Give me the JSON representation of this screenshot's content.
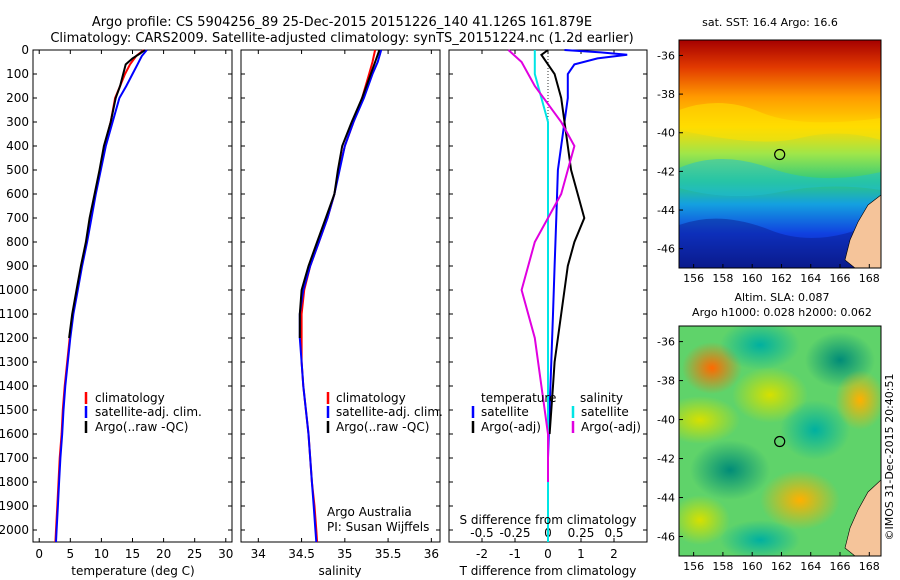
{
  "header": {
    "line1": "Argo profile: CS 5904256_89 25-Dec-2015 20151226_140 41.126S 161.879E",
    "line2": "Climatology: CARS2009. Satellite-adjusted climatology: synTS_20151224.nc (1.2d earlier)"
  },
  "colors": {
    "climatology": "#ff0000",
    "satellite": "#0000ff",
    "argo": "#000000",
    "s_satellite": "#00e5e5",
    "s_argo": "#e000e0"
  },
  "chart_data": [
    {
      "type": "line",
      "panel": "temperature",
      "xlabel": "temperature (deg C)",
      "ylabel": "",
      "xlim": [
        -1,
        31
      ],
      "ylim": [
        2050,
        0
      ],
      "xticks": [
        "0",
        "5",
        "10",
        "15",
        "20",
        "25",
        "30"
      ],
      "yticks": [
        "0",
        "100",
        "200",
        "300",
        "400",
        "500",
        "600",
        "700",
        "800",
        "900",
        "1000",
        "1100",
        "1200",
        "1300",
        "1400",
        "1500",
        "1600",
        "1700",
        "1800",
        "1900",
        "2000"
      ],
      "legend": [
        "climatology",
        "satellite-adj. clim.",
        "Argo(..raw -QC)"
      ],
      "legend_position": "lower-left",
      "series": [
        {
          "name": "climatology",
          "color": "#ff0000",
          "points": [
            [
              16.8,
              0
            ],
            [
              15.6,
              25
            ],
            [
              14.6,
              60
            ],
            [
              13.8,
              100
            ],
            [
              13.0,
              150
            ],
            [
              12.2,
              200
            ],
            [
              11.5,
              300
            ],
            [
              10.5,
              400
            ],
            [
              9.8,
              500
            ],
            [
              9.0,
              600
            ],
            [
              8.3,
              700
            ],
            [
              7.6,
              800
            ],
            [
              6.8,
              900
            ],
            [
              6.1,
              1000
            ],
            [
              5.4,
              1100
            ],
            [
              4.9,
              1200
            ],
            [
              4.5,
              1300
            ],
            [
              4.1,
              1400
            ],
            [
              3.8,
              1500
            ],
            [
              3.6,
              1600
            ],
            [
              3.3,
              1700
            ],
            [
              3.1,
              1800
            ],
            [
              2.9,
              1900
            ],
            [
              2.7,
              2000
            ],
            [
              2.6,
              2050
            ]
          ]
        },
        {
          "name": "satellite-adj. clim.",
          "color": "#0000ff",
          "points": [
            [
              17.3,
              0
            ],
            [
              16.5,
              25
            ],
            [
              15.8,
              60
            ],
            [
              15.0,
              100
            ],
            [
              14.0,
              150
            ],
            [
              12.9,
              200
            ],
            [
              11.8,
              300
            ],
            [
              10.7,
              400
            ],
            [
              9.9,
              500
            ],
            [
              9.1,
              600
            ],
            [
              8.4,
              700
            ],
            [
              7.7,
              800
            ],
            [
              6.9,
              900
            ],
            [
              6.2,
              1000
            ],
            [
              5.5,
              1100
            ],
            [
              5.0,
              1200
            ],
            [
              4.6,
              1300
            ],
            [
              4.2,
              1400
            ],
            [
              3.9,
              1500
            ],
            [
              3.7,
              1600
            ],
            [
              3.4,
              1700
            ],
            [
              3.2,
              1800
            ],
            [
              3.0,
              1900
            ],
            [
              2.8,
              2000
            ],
            [
              2.7,
              2050
            ]
          ]
        },
        {
          "name": "Argo(..raw -QC)",
          "color": "#000000",
          "points": [
            [
              17.0,
              0
            ],
            [
              16.2,
              15
            ],
            [
              15.0,
              35
            ],
            [
              13.9,
              60
            ],
            [
              13.5,
              100
            ],
            [
              13.0,
              150
            ],
            [
              12.3,
              200
            ],
            [
              11.5,
              300
            ],
            [
              10.4,
              400
            ],
            [
              9.7,
              500
            ],
            [
              8.9,
              600
            ],
            [
              8.1,
              700
            ],
            [
              7.5,
              800
            ],
            [
              6.7,
              900
            ],
            [
              6.0,
              1000
            ],
            [
              5.3,
              1100
            ],
            [
              4.8,
              1200
            ]
          ]
        }
      ]
    },
    {
      "type": "line",
      "panel": "salinity",
      "xlabel": "salinity",
      "xlim": [
        33.8,
        36.1
      ],
      "ylim": [
        2050,
        0
      ],
      "xticks": [
        "34",
        "34.5",
        "35",
        "35.5",
        "36"
      ],
      "legend": [
        "climatology",
        "satellite-adj. clim.",
        "Argo(..raw -QC)"
      ],
      "legend_position": "lower-right",
      "annotation": [
        "Argo Australia",
        "PI: Susan Wijffels"
      ],
      "series": [
        {
          "name": "climatology",
          "color": "#ff0000",
          "points": [
            [
              35.35,
              0
            ],
            [
              35.32,
              50
            ],
            [
              35.28,
              100
            ],
            [
              35.2,
              200
            ],
            [
              35.1,
              300
            ],
            [
              35.0,
              400
            ],
            [
              34.93,
              500
            ],
            [
              34.88,
              600
            ],
            [
              34.8,
              700
            ],
            [
              34.7,
              800
            ],
            [
              34.6,
              900
            ],
            [
              34.53,
              1000
            ],
            [
              34.5,
              1100
            ],
            [
              34.5,
              1200
            ],
            [
              34.5,
              1300
            ],
            [
              34.52,
              1400
            ],
            [
              34.55,
              1500
            ],
            [
              34.58,
              1600
            ],
            [
              34.6,
              1700
            ],
            [
              34.62,
              1800
            ],
            [
              34.65,
              1900
            ],
            [
              34.67,
              2000
            ],
            [
              34.68,
              2050
            ]
          ]
        },
        {
          "name": "satellite-adj. clim.",
          "color": "#0000ff",
          "points": [
            [
              35.42,
              0
            ],
            [
              35.38,
              50
            ],
            [
              35.32,
              100
            ],
            [
              35.22,
              200
            ],
            [
              35.1,
              300
            ],
            [
              35.0,
              400
            ],
            [
              34.94,
              500
            ],
            [
              34.88,
              600
            ],
            [
              34.8,
              700
            ],
            [
              34.7,
              800
            ],
            [
              34.6,
              900
            ],
            [
              34.52,
              1000
            ],
            [
              34.48,
              1100
            ],
            [
              34.48,
              1200
            ],
            [
              34.5,
              1300
            ],
            [
              34.52,
              1400
            ],
            [
              34.55,
              1500
            ],
            [
              34.58,
              1600
            ],
            [
              34.6,
              1700
            ],
            [
              34.62,
              1800
            ],
            [
              34.64,
              1900
            ],
            [
              34.66,
              2000
            ],
            [
              34.67,
              2050
            ]
          ]
        },
        {
          "name": "Argo(..raw -QC)",
          "color": "#000000",
          "points": [
            [
              35.4,
              0
            ],
            [
              35.36,
              40
            ],
            [
              35.3,
              100
            ],
            [
              35.2,
              200
            ],
            [
              35.08,
              300
            ],
            [
              34.97,
              400
            ],
            [
              34.92,
              500
            ],
            [
              34.88,
              600
            ],
            [
              34.78,
              700
            ],
            [
              34.68,
              800
            ],
            [
              34.58,
              900
            ],
            [
              34.5,
              1000
            ],
            [
              34.48,
              1100
            ],
            [
              34.48,
              1200
            ]
          ]
        }
      ]
    },
    {
      "type": "line",
      "panel": "differences",
      "xlabel": "T difference from climatology",
      "xlabel_top": "S difference from climatology",
      "xlim": [
        -3,
        3
      ],
      "ylim": [
        2050,
        0
      ],
      "xticks": [
        "-2",
        "-1",
        "0",
        "1",
        "2"
      ],
      "xticks_s": [
        "-0.5",
        "-0.25",
        "0",
        "0.25",
        "0.5"
      ],
      "legend_headers": [
        "temperature",
        "salinity"
      ],
      "legend": [
        "satellite",
        "Argo(-adj)",
        "satellite",
        "Argo(-adj)"
      ],
      "legend_position": "lower-center",
      "series": [
        {
          "name": "satellite",
          "group": "temperature",
          "color": "#0000ff",
          "points": [
            [
              0.5,
              0
            ],
            [
              1.6,
              10
            ],
            [
              2.4,
              20
            ],
            [
              1.5,
              35
            ],
            [
              0.8,
              60
            ],
            [
              0.6,
              100
            ],
            [
              0.6,
              200
            ],
            [
              0.5,
              300
            ],
            [
              0.4,
              400
            ],
            [
              0.3,
              500
            ],
            [
              0.25,
              700
            ],
            [
              0.2,
              900
            ],
            [
              0.15,
              1100
            ],
            [
              0.1,
              1300
            ],
            [
              0.05,
              1500
            ],
            [
              0.0,
              1700
            ],
            [
              0.0,
              1900
            ],
            [
              0.0,
              2050
            ]
          ]
        },
        {
          "name": "Argo(-adj)",
          "group": "temperature",
          "color": "#000000",
          "points": [
            [
              0.0,
              0
            ],
            [
              -0.2,
              20
            ],
            [
              0.0,
              60
            ],
            [
              0.2,
              100
            ],
            [
              0.4,
              200
            ],
            [
              0.5,
              300
            ],
            [
              0.6,
              400
            ],
            [
              0.7,
              500
            ],
            [
              0.9,
              600
            ],
            [
              1.1,
              700
            ],
            [
              0.8,
              800
            ],
            [
              0.6,
              900
            ],
            [
              0.5,
              1000
            ],
            [
              0.4,
              1100
            ],
            [
              0.3,
              1200
            ],
            [
              0.2,
              1300
            ],
            [
              0.15,
              1400
            ],
            [
              0.1,
              1500
            ],
            [
              0.05,
              1600
            ]
          ]
        },
        {
          "name": "satellite",
          "group": "salinity",
          "color": "#00e5e5",
          "points": [
            [
              -0.1,
              0
            ],
            [
              -0.1,
              100
            ],
            [
              0.0,
              300
            ],
            [
              0.0,
              500
            ],
            [
              0.0,
              700
            ],
            [
              0.0,
              1000
            ],
            [
              0.0,
              1300
            ],
            [
              0.0,
              1600
            ],
            [
              0.0,
              1900
            ],
            [
              0.0,
              2050
            ]
          ]
        },
        {
          "name": "Argo(-adj)",
          "group": "salinity",
          "color": "#e000e0",
          "points": [
            [
              -0.3,
              0
            ],
            [
              -0.2,
              50
            ],
            [
              -0.1,
              150
            ],
            [
              0.1,
              300
            ],
            [
              0.2,
              400
            ],
            [
              0.1,
              600
            ],
            [
              -0.1,
              800
            ],
            [
              -0.2,
              1000
            ],
            [
              -0.1,
              1200
            ],
            [
              -0.05,
              1400
            ],
            [
              0.0,
              1600
            ],
            [
              0.0,
              1800
            ]
          ]
        }
      ]
    },
    {
      "type": "heatmap",
      "panel": "sst_map",
      "title": "sat. SST: 16.4  Argo: 16.6",
      "xticks": [
        "156",
        "158",
        "160",
        "162",
        "164",
        "166",
        "168"
      ],
      "yticks": [
        "-36",
        "-38",
        "-40",
        "-42",
        "-44",
        "-46"
      ],
      "xlim": [
        155,
        168.8
      ],
      "ylim": [
        -47,
        -35.2
      ],
      "profile_location": [
        161.879,
        -41.126
      ]
    },
    {
      "type": "heatmap",
      "panel": "sla_map",
      "title_line1": "Altim. SLA: 0.087",
      "title_line2": "Argo h1000: 0.028 h2000: 0.062",
      "xticks": [
        "156",
        "158",
        "160",
        "162",
        "164",
        "166",
        "168"
      ],
      "yticks": [
        "-36",
        "-38",
        "-40",
        "-42",
        "-44",
        "-46"
      ],
      "xlim": [
        155,
        168.8
      ],
      "ylim": [
        -47,
        -35.2
      ],
      "profile_location": [
        161.879,
        -41.126
      ]
    }
  ],
  "footer": {
    "credit": "©IMOS 31-Dec-2015 20:40:51"
  }
}
